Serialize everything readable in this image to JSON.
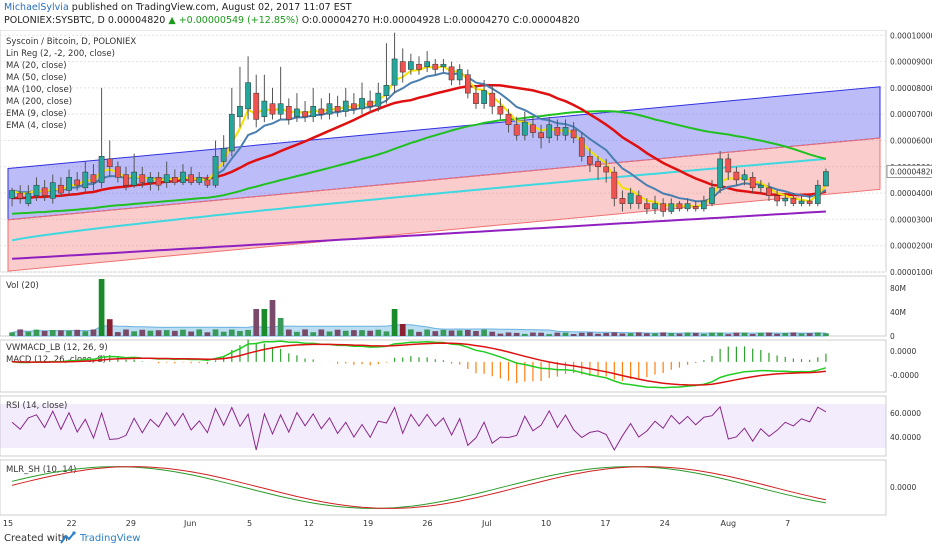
{
  "header": {
    "author": "MichaelSylvia",
    "published_text": "published on TradingView.com, August 02, 2017 11:07 EST",
    "symbol": "POLONIEX:SYSBTC, D",
    "last": "0.00004820",
    "change": "+0.00000549 (+12.85%)",
    "open": "O:0.00004270",
    "high": "H:0.00004928",
    "low": "L:0.00004270",
    "close": "C:0.00004820"
  },
  "footer": {
    "created_with": "Created with",
    "brand": "TradingView"
  },
  "colors": {
    "bull": "#26a69a",
    "bear": "#ef5350",
    "ema4": "#f2e200",
    "ema9": "#4a7fb0",
    "ma20": "#e01010",
    "ma50": "#20c020",
    "ma100": "#40d8e0",
    "ma200": "#9020c0",
    "band_upper": "#3030e0",
    "band_lower": "#f07070"
  },
  "chart_data": [
    {
      "type": "candlestick",
      "title": "Syscoin / Bitcoin, D, POLONIEX",
      "legend": [
        "Lin Reg (2, -2, 200, close)",
        "MA (20, close)",
        "MA (50, close)",
        "MA (100, close)",
        "MA (200, close)",
        "EMA (9, close)",
        "EMA (4, close)"
      ],
      "y_ticks": [
        "0.00010000",
        "0.00009000",
        "0.00008000",
        "0.00007000",
        "0.00006000",
        "0.00005000",
        "0.00004000",
        "0.00003000",
        "0.00002000",
        "0.00001000"
      ],
      "ylim": [
        1e-05,
        0.000102
      ],
      "last_price_label": "0.00004820",
      "x_ticks": [
        "15",
        "22",
        "29",
        "Jun",
        "5",
        "12",
        "19",
        "26",
        "Jul",
        "10",
        "17",
        "24",
        "Aug",
        "7"
      ],
      "candles": [
        [
          3.8,
          4.1,
          3.5,
          4.2
        ],
        [
          4.0,
          3.8,
          3.6,
          4.3
        ],
        [
          3.6,
          4.0,
          3.5,
          4.3
        ],
        [
          3.9,
          4.3,
          3.7,
          4.6
        ],
        [
          4.2,
          3.9,
          3.7,
          4.5
        ],
        [
          3.8,
          4.4,
          3.6,
          4.7
        ],
        [
          4.3,
          4.0,
          3.9,
          4.6
        ],
        [
          4.1,
          4.6,
          3.9,
          4.9
        ],
        [
          4.5,
          4.3,
          4.1,
          4.8
        ],
        [
          4.2,
          4.8,
          4.0,
          5.2
        ],
        [
          4.7,
          4.4,
          4.1,
          5.1
        ],
        [
          4.4,
          5.4,
          4.2,
          8.0
        ],
        [
          5.3,
          5.0,
          4.6,
          6.0
        ],
        [
          5.0,
          4.6,
          4.4,
          5.2
        ],
        [
          4.7,
          4.3,
          4.1,
          5.0
        ],
        [
          4.3,
          4.8,
          4.2,
          5.5
        ],
        [
          4.7,
          4.4,
          4.2,
          5.0
        ],
        [
          4.4,
          4.6,
          4.1,
          4.8
        ],
        [
          4.6,
          4.3,
          4.1,
          4.8
        ],
        [
          4.4,
          4.7,
          4.2,
          5.2
        ],
        [
          4.6,
          4.4,
          4.3,
          4.9
        ],
        [
          4.4,
          4.8,
          4.3,
          5.1
        ],
        [
          4.7,
          4.4,
          4.3,
          5.0
        ],
        [
          4.4,
          4.6,
          4.3,
          4.8
        ],
        [
          4.5,
          4.3,
          4.2,
          4.7
        ],
        [
          4.3,
          5.4,
          4.2,
          6.0
        ],
        [
          5.2,
          5.7,
          5.0,
          6.2
        ],
        [
          5.6,
          7.0,
          5.4,
          8.0
        ],
        [
          6.9,
          7.3,
          6.5,
          8.8
        ],
        [
          7.2,
          8.2,
          6.8,
          9.2
        ],
        [
          7.8,
          6.8,
          6.5,
          8.5
        ],
        [
          6.9,
          7.5,
          6.7,
          8.5
        ],
        [
          7.4,
          7.0,
          6.8,
          8.0
        ],
        [
          7.0,
          7.4,
          6.8,
          8.8
        ],
        [
          7.3,
          6.8,
          6.6,
          7.6
        ],
        [
          6.9,
          7.2,
          6.7,
          7.8
        ],
        [
          7.1,
          6.9,
          6.7,
          7.5
        ],
        [
          6.9,
          7.3,
          6.7,
          8.0
        ],
        [
          7.2,
          7.0,
          6.8,
          7.6
        ],
        [
          7.0,
          7.4,
          6.8,
          7.8
        ],
        [
          7.3,
          7.1,
          6.9,
          7.7
        ],
        [
          7.1,
          7.5,
          6.9,
          8.0
        ],
        [
          7.4,
          7.2,
          7.0,
          7.8
        ],
        [
          7.2,
          7.6,
          7.0,
          8.2
        ],
        [
          7.5,
          7.3,
          7.1,
          7.9
        ],
        [
          7.3,
          7.8,
          7.1,
          8.2
        ],
        [
          7.7,
          8.1,
          7.4,
          9.7
        ],
        [
          8.1,
          9.1,
          7.8,
          10.1
        ],
        [
          9.0,
          8.6,
          8.2,
          9.5
        ],
        [
          8.7,
          9.0,
          8.5,
          9.3
        ],
        [
          8.9,
          8.7,
          8.5,
          9.2
        ],
        [
          8.8,
          9.0,
          8.6,
          9.4
        ],
        [
          8.9,
          8.7,
          8.5,
          9.1
        ],
        [
          8.8,
          8.9,
          8.6,
          9.1
        ],
        [
          8.8,
          8.3,
          8.1,
          9.0
        ],
        [
          8.3,
          8.7,
          8.1,
          8.9
        ],
        [
          8.5,
          7.8,
          7.6,
          8.7
        ],
        [
          7.8,
          7.4,
          7.2,
          8.1
        ],
        [
          7.4,
          7.9,
          7.2,
          8.3
        ],
        [
          7.8,
          7.3,
          7.0,
          8.1
        ],
        [
          7.3,
          7.0,
          6.8,
          7.6
        ],
        [
          7.0,
          6.6,
          6.3,
          7.2
        ],
        [
          6.6,
          6.2,
          6.0,
          6.9
        ],
        [
          6.2,
          6.7,
          6.0,
          7.1
        ],
        [
          6.6,
          6.3,
          6.1,
          6.9
        ],
        [
          6.3,
          6.1,
          5.7,
          6.6
        ],
        [
          6.1,
          6.6,
          5.9,
          6.9
        ],
        [
          6.5,
          6.2,
          6.0,
          6.8
        ],
        [
          6.2,
          6.5,
          6.0,
          6.8
        ],
        [
          6.4,
          6.1,
          5.9,
          6.7
        ],
        [
          6.1,
          5.4,
          5.2,
          6.3
        ],
        [
          5.4,
          5.1,
          4.8,
          5.7
        ],
        [
          5.2,
          5.0,
          4.5,
          5.4
        ],
        [
          5.0,
          4.8,
          4.4,
          5.3
        ],
        [
          4.8,
          3.8,
          3.5,
          5.0
        ],
        [
          3.8,
          3.6,
          3.3,
          4.1
        ],
        [
          3.6,
          4.0,
          3.4,
          4.2
        ],
        [
          3.9,
          3.6,
          3.4,
          4.1
        ],
        [
          3.6,
          3.4,
          3.2,
          3.8
        ],
        [
          3.4,
          3.6,
          3.2,
          3.9
        ],
        [
          3.6,
          3.3,
          3.1,
          3.8
        ],
        [
          3.3,
          3.6,
          3.2,
          3.8
        ],
        [
          3.6,
          3.4,
          3.3,
          3.7
        ],
        [
          3.4,
          3.6,
          3.3,
          3.8
        ],
        [
          3.5,
          3.4,
          3.3,
          3.7
        ],
        [
          3.4,
          3.7,
          3.3,
          3.9
        ],
        [
          3.6,
          4.2,
          3.5,
          4.5
        ],
        [
          4.2,
          5.3,
          4.0,
          5.6
        ],
        [
          5.3,
          4.8,
          4.5,
          5.5
        ],
        [
          4.8,
          4.5,
          4.3,
          5.0
        ],
        [
          4.5,
          4.7,
          4.3,
          4.9
        ],
        [
          4.6,
          4.2,
          4.0,
          4.8
        ],
        [
          4.2,
          4.3,
          4.0,
          4.5
        ],
        [
          4.2,
          3.9,
          3.7,
          4.4
        ],
        [
          3.9,
          3.7,
          3.5,
          4.1
        ],
        [
          3.7,
          3.8,
          3.5,
          4.0
        ],
        [
          3.8,
          3.6,
          3.5,
          4.0
        ],
        [
          3.6,
          3.7,
          3.5,
          3.9
        ],
        [
          3.7,
          3.6,
          3.5,
          3.9
        ],
        [
          3.6,
          4.3,
          3.5,
          4.5
        ],
        [
          4.27,
          4.82,
          4.27,
          4.93
        ]
      ]
    },
    {
      "type": "bar",
      "title": "Vol (20)",
      "y_ticks": [
        "80M",
        "40M",
        "0"
      ]
    },
    {
      "type": "line",
      "title": "VWMACD_LB (12, 26, 9)",
      "title2": "MACD (12, 26, close, 9)",
      "y_ticks": [
        "0.0000",
        "-0.0000"
      ]
    },
    {
      "type": "line",
      "title": "RSI (14, close)",
      "y_ticks": [
        "60.0000",
        "40.0000"
      ]
    },
    {
      "type": "line",
      "title": "MLR_SH (10, 14)",
      "y_ticks": [
        "0.0000"
      ]
    }
  ]
}
